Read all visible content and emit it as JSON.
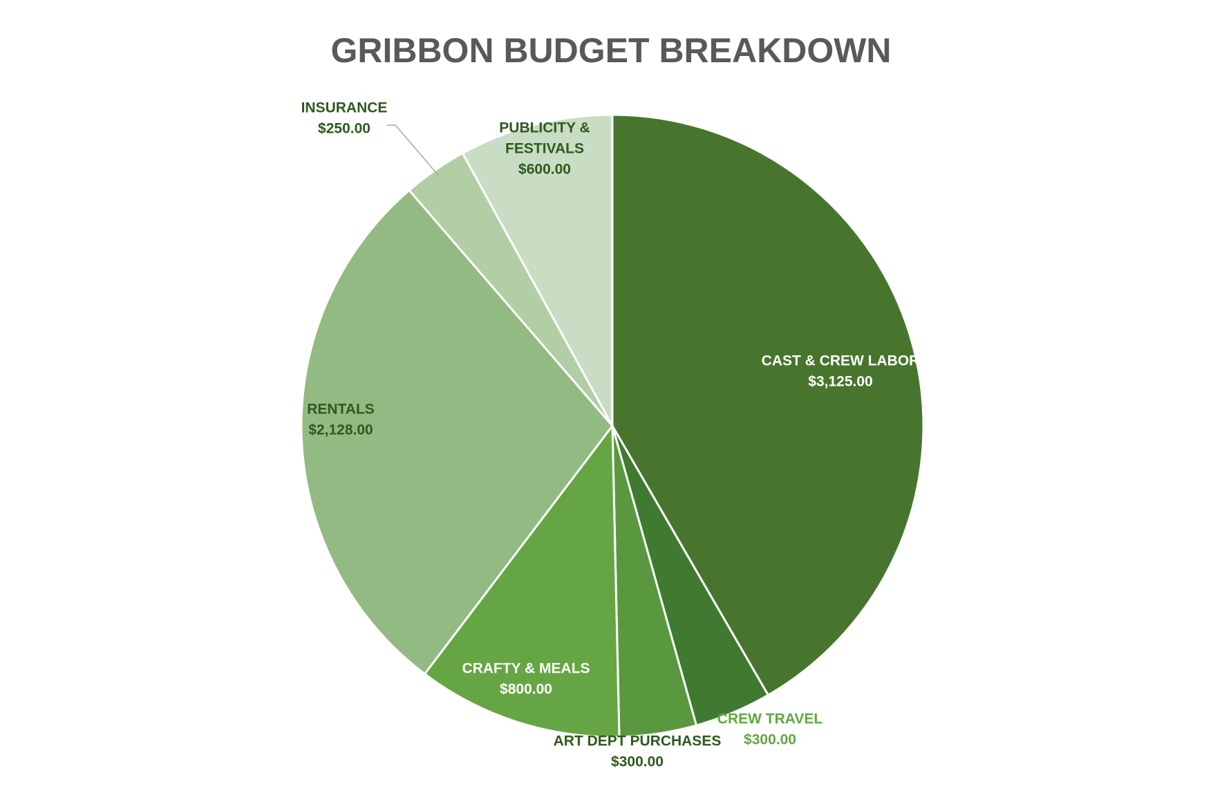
{
  "chart_data": {
    "type": "pie",
    "title": "GRIBBON BUDGET BREAKDOWN",
    "slices": [
      {
        "label": "CAST & CREW LABOR",
        "value": 3125.0,
        "value_label": "$3,125.00",
        "color": "#47752e",
        "label_color": "#ffffff"
      },
      {
        "label": "CREW TRAVEL",
        "value": 300.0,
        "value_label": "$300.00",
        "color": "#3f7a30",
        "label_color": "#5fa83e"
      },
      {
        "label": "ART DEPT PURCHASES",
        "value": 300.0,
        "value_label": "$300.00",
        "color": "#5a9840",
        "label_color": "#2e5a1c"
      },
      {
        "label": "CRAFTY & MEALS",
        "value": 800.0,
        "value_label": "$800.00",
        "color": "#66a544",
        "label_color": "#ffffff"
      },
      {
        "label": "RENTALS",
        "value": 2128.0,
        "value_label": "$2,128.00",
        "color": "#93ba82",
        "label_color": "#2e5a1c"
      },
      {
        "label": "INSURANCE",
        "value": 250.0,
        "value_label": "$250.00",
        "color": "#b2ceA5",
        "label_color": "#2e5a1c"
      },
      {
        "label": "PUBLICITY & FESTIVALS",
        "value": 600.0,
        "value_label": "$600.00",
        "color": "#c9dcc4",
        "label_color": "#2e5a1c"
      }
    ],
    "start_angle": "12 o'clock",
    "direction": "clockwise",
    "legend": "none"
  }
}
